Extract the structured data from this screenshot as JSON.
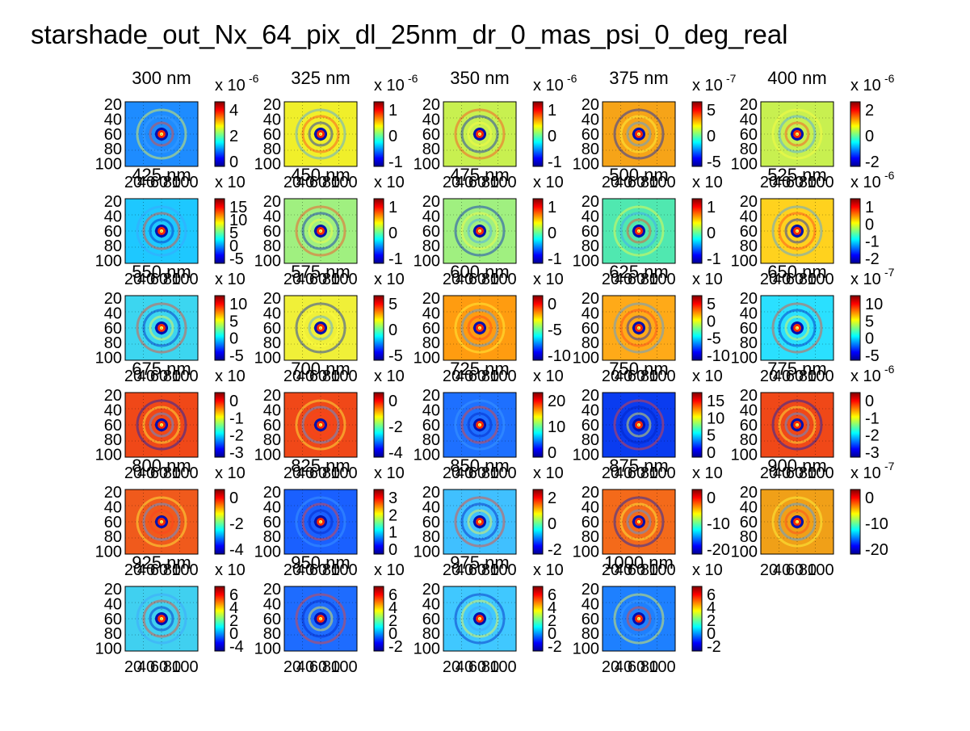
{
  "figure": {
    "title": "starshade_out_Nx_64_pix_dl_25nm_dr_0_mas_psi_0_deg_real"
  },
  "chart_data": {
    "type": "heatmap",
    "layout": {
      "rows": 6,
      "cols": 5
    },
    "colormap": [
      "#00008f",
      "#0000ff",
      "#007fff",
      "#00ffff",
      "#7fff7f",
      "#ffff00",
      "#ff7f00",
      "#ff0000",
      "#7f0000"
    ],
    "panels": [
      {
        "title": "300 nm",
        "exp": "x 10",
        "exp_power": "-6",
        "cb_ticks": [
          "4",
          "2",
          "0"
        ]
      },
      {
        "title": "325 nm",
        "exp": "x 10",
        "exp_power": "-6",
        "cb_ticks": [
          "1",
          "0",
          "-1"
        ]
      },
      {
        "title": "350 nm",
        "exp": "x 10",
        "exp_power": "-6",
        "cb_ticks": [
          "1",
          "0",
          "-1"
        ]
      },
      {
        "title": "375 nm",
        "exp": "x 10",
        "exp_power": "-7",
        "cb_ticks": [
          "5",
          "0",
          "-5"
        ]
      },
      {
        "title": "400 nm",
        "exp": "x 10",
        "exp_power": "-6",
        "cb_ticks": [
          "2",
          "0",
          "-2"
        ]
      },
      {
        "title": "425 nm",
        "exp": "x 10",
        "exp_power": "",
        "cb_ticks": [
          "15",
          "10",
          "5",
          "0",
          "-5"
        ]
      },
      {
        "title": "450 nm",
        "exp": "x 10",
        "exp_power": "",
        "cb_ticks": [
          "1",
          "0",
          "-1"
        ]
      },
      {
        "title": "475 nm",
        "exp": "x 10",
        "exp_power": "",
        "cb_ticks": [
          "1",
          "0",
          "-1"
        ]
      },
      {
        "title": "500 nm",
        "exp": "x 10",
        "exp_power": "",
        "cb_ticks": [
          "1",
          "0",
          "-1"
        ]
      },
      {
        "title": "525 nm",
        "exp": "x 10",
        "exp_power": "-6",
        "cb_ticks": [
          "1",
          "0",
          "-1",
          "-2"
        ]
      },
      {
        "title": "550 nm",
        "exp": "x 10",
        "exp_power": "",
        "cb_ticks": [
          "10",
          "5",
          "0",
          "-5"
        ]
      },
      {
        "title": "575 nm",
        "exp": "x 10",
        "exp_power": "",
        "cb_ticks": [
          "5",
          "0",
          "-5"
        ]
      },
      {
        "title": "600 nm",
        "exp": "x 10",
        "exp_power": "",
        "cb_ticks": [
          "0",
          "-5",
          "-10"
        ]
      },
      {
        "title": "625 nm",
        "exp": "x 10",
        "exp_power": "",
        "cb_ticks": [
          "5",
          "0",
          "-5",
          "-10"
        ]
      },
      {
        "title": "650 nm",
        "exp": "x 10",
        "exp_power": "-7",
        "cb_ticks": [
          "10",
          "5",
          "0",
          "-5"
        ]
      },
      {
        "title": "675 nm",
        "exp": "x 10",
        "exp_power": "",
        "cb_ticks": [
          "0",
          "-1",
          "-2",
          "-3"
        ]
      },
      {
        "title": "700 nm",
        "exp": "x 10",
        "exp_power": "",
        "cb_ticks": [
          "0",
          "-2",
          "-4"
        ]
      },
      {
        "title": "725 nm",
        "exp": "x 10",
        "exp_power": "",
        "cb_ticks": [
          "20",
          "10",
          "0"
        ]
      },
      {
        "title": "750 nm",
        "exp": "x 10",
        "exp_power": "",
        "cb_ticks": [
          "15",
          "10",
          "5",
          "0"
        ]
      },
      {
        "title": "775 nm",
        "exp": "x 10",
        "exp_power": "-6",
        "cb_ticks": [
          "0",
          "-1",
          "-2",
          "-3"
        ]
      },
      {
        "title": "800 nm",
        "exp": "x 10",
        "exp_power": "",
        "cb_ticks": [
          "0",
          "-2",
          "-4"
        ]
      },
      {
        "title": "825 nm",
        "exp": "x 10",
        "exp_power": "",
        "cb_ticks": [
          "3",
          "2",
          "1",
          "0"
        ]
      },
      {
        "title": "850 nm",
        "exp": "x 10",
        "exp_power": "",
        "cb_ticks": [
          "2",
          "0",
          "-2"
        ]
      },
      {
        "title": "875 nm",
        "exp": "x 10",
        "exp_power": "",
        "cb_ticks": [
          "0",
          "-10",
          "-20"
        ]
      },
      {
        "title": "900 nm",
        "exp": "x 10",
        "exp_power": "-7",
        "cb_ticks": [
          "0",
          "-10",
          "-20"
        ]
      },
      {
        "title": "925 nm",
        "exp": "x 10",
        "exp_power": "",
        "cb_ticks": [
          "6",
          "4",
          "2",
          "0",
          "-4"
        ]
      },
      {
        "title": "950 nm",
        "exp": "x 10",
        "exp_power": "",
        "cb_ticks": [
          "6",
          "4",
          "2",
          "0",
          "-2"
        ]
      },
      {
        "title": "975 nm",
        "exp": "x 10",
        "exp_power": "",
        "cb_ticks": [
          "6",
          "4",
          "2",
          "0",
          "-2"
        ]
      },
      {
        "title": "1000 nm",
        "exp": "x 10",
        "exp_power": "",
        "cb_ticks": [
          "6",
          "4",
          "2",
          "0",
          "-2"
        ]
      }
    ],
    "y_ticks": [
      "20",
      "40",
      "60",
      "80",
      "100"
    ],
    "x_ticks": [
      "20",
      "40",
      "60",
      "80",
      "100"
    ]
  }
}
